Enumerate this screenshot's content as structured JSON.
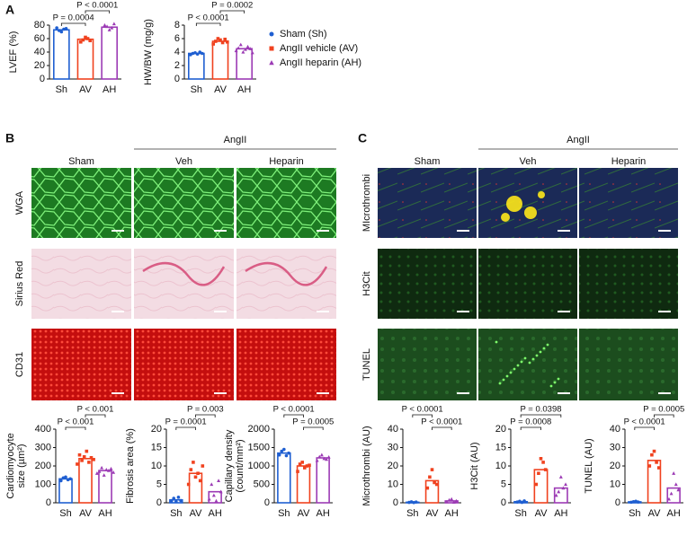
{
  "chart_data": [
    {
      "type": "bar",
      "ylabel": [
        "LVEF (%)"
      ],
      "categories": [
        "Sh",
        "AV",
        "AH"
      ],
      "values": [
        73,
        59,
        77
      ],
      "colors": [
        "#1f5fd1",
        "#f0421f",
        "#9c3bb5"
      ],
      "markers": [
        "circle",
        "square",
        "triangle"
      ],
      "points": [
        [
          76,
          72,
          70,
          74,
          75
        ],
        [
          55,
          58,
          62,
          60,
          57
        ],
        [
          80,
          78,
          73,
          76,
          82
        ]
      ],
      "ylim": [
        0,
        80
      ],
      "yticks": [
        0,
        20,
        40,
        60,
        80
      ],
      "annotations": [
        "P = 0.0004",
        "P < 0.0001"
      ]
    },
    {
      "type": "bar",
      "ylabel": [
        "HW/BW (mg/g)"
      ],
      "categories": [
        "Sh",
        "AV",
        "AH"
      ],
      "values": [
        3.8,
        5.6,
        4.5
      ],
      "colors": [
        "#1f5fd1",
        "#f0421f",
        "#9c3bb5"
      ],
      "markers": [
        "circle",
        "square",
        "triangle"
      ],
      "points": [
        [
          3.6,
          3.8,
          3.9,
          3.7,
          4.0,
          3.8
        ],
        [
          5.2,
          5.6,
          6.0,
          5.8,
          5.4,
          5.9,
          5.5
        ],
        [
          4.2,
          4.6,
          5.1,
          4.0,
          4.4,
          4.8,
          4.5,
          3.9
        ]
      ],
      "ylim": [
        0,
        8
      ],
      "yticks": [
        0,
        2,
        4,
        6,
        8
      ],
      "annotations": [
        "P < 0.0001",
        "P = 0.0002"
      ]
    },
    {
      "type": "bar",
      "ylabel": [
        "Cardiomyocyte",
        "size (µm²)"
      ],
      "categories": [
        "Sh",
        "AV",
        "AH"
      ],
      "values": [
        130,
        240,
        175
      ],
      "colors": [
        "#1f5fd1",
        "#f0421f",
        "#9c3bb5"
      ],
      "markers": [
        "circle",
        "square",
        "triangle"
      ],
      "points": [
        [
          120,
          135,
          140,
          125,
          130
        ],
        [
          210,
          260,
          230,
          250,
          280,
          220,
          245,
          235
        ],
        [
          160,
          170,
          190,
          150,
          180,
          175,
          185,
          165
        ]
      ],
      "ylim": [
        0,
        400
      ],
      "yticks": [
        0,
        100,
        200,
        300,
        400
      ],
      "annotations": [
        "P < 0.001",
        "P < 0.001"
      ]
    },
    {
      "type": "bar",
      "ylabel": [
        "Fibrosis area (%)"
      ],
      "categories": [
        "Sh",
        "AV",
        "AH"
      ],
      "values": [
        0.8,
        8,
        3
      ],
      "colors": [
        "#1f5fd1",
        "#f0421f",
        "#9c3bb5"
      ],
      "markers": [
        "circle",
        "square",
        "triangle"
      ],
      "points": [
        [
          0.5,
          1.2,
          0.3,
          1.5,
          0.6
        ],
        [
          5,
          9,
          11,
          7,
          8,
          6,
          10
        ],
        [
          1,
          5,
          2,
          0.5,
          6,
          3
        ]
      ],
      "ylim": [
        0,
        20
      ],
      "yticks": [
        0,
        5,
        10,
        15,
        20
      ],
      "annotations": [
        "P = 0.0001",
        "P = 0.003"
      ]
    },
    {
      "type": "bar",
      "ylabel": [
        "Capillary density",
        "(count/mm²)"
      ],
      "categories": [
        "Sh",
        "AV",
        "AH"
      ],
      "values": [
        1350,
        1000,
        1220
      ],
      "colors": [
        "#1f5fd1",
        "#f0421f",
        "#9c3bb5"
      ],
      "markers": [
        "circle",
        "square",
        "triangle"
      ],
      "points": [
        [
          1300,
          1400,
          1450,
          1280,
          1350
        ],
        [
          850,
          1050,
          1100,
          950,
          1000,
          1020
        ],
        [
          1150,
          1250,
          1300,
          1200,
          1180,
          1240
        ]
      ],
      "ylim": [
        0,
        2000
      ],
      "yticks": [
        0,
        500,
        1000,
        1500,
        2000
      ],
      "annotations": [
        "P < 0.0001",
        "P = 0.0005"
      ]
    },
    {
      "type": "bar",
      "ylabel": [
        "Microthrombi (AU)"
      ],
      "categories": [
        "Sh",
        "AV",
        "AH"
      ],
      "values": [
        0.3,
        12,
        1
      ],
      "colors": [
        "#1f5fd1",
        "#f0421f",
        "#9c3bb5"
      ],
      "markers": [
        "circle",
        "square",
        "triangle"
      ],
      "points": [
        [
          0.2,
          0.5,
          0.1,
          0.4
        ],
        [
          8,
          14,
          18,
          11,
          10
        ],
        [
          0.5,
          1.5,
          2,
          0.3,
          1
        ]
      ],
      "ylim": [
        0,
        40
      ],
      "yticks": [
        0,
        10,
        20,
        30,
        40
      ],
      "annotations": [
        "P < 0.0001",
        "P < 0.0001"
      ]
    },
    {
      "type": "bar",
      "ylabel": [
        "H3Cit (AU)"
      ],
      "categories": [
        "Sh",
        "AV",
        "AH"
      ],
      "values": [
        0.3,
        9,
        4
      ],
      "colors": [
        "#1f5fd1",
        "#f0421f",
        "#9c3bb5"
      ],
      "markers": [
        "circle",
        "square",
        "triangle"
      ],
      "points": [
        [
          0.2,
          0.4,
          0.1,
          0.5
        ],
        [
          5,
          8,
          12,
          11,
          9
        ],
        [
          2,
          3,
          7,
          4,
          5
        ]
      ],
      "ylim": [
        0,
        20
      ],
      "yticks": [
        0,
        5,
        10,
        15,
        20
      ],
      "annotations": [
        "P = 0.0008",
        "P = 0.0398"
      ]
    },
    {
      "type": "bar",
      "ylabel": [
        "TUNEL (AU)"
      ],
      "categories": [
        "Sh",
        "AV",
        "AH"
      ],
      "values": [
        0.5,
        23,
        8
      ],
      "colors": [
        "#1f5fd1",
        "#f0421f",
        "#9c3bb5"
      ],
      "markers": [
        "circle",
        "square",
        "triangle"
      ],
      "points": [
        [
          0.3,
          0.6,
          0.8,
          0.4
        ],
        [
          20,
          26,
          28,
          22,
          19
        ],
        [
          2,
          5,
          16,
          10,
          7
        ]
      ],
      "ylim": [
        0,
        40
      ],
      "yticks": [
        0,
        10,
        20,
        30,
        40
      ],
      "annotations": [
        "P < 0.0001",
        "P = 0.0005"
      ]
    }
  ],
  "figure": {
    "panels": [
      "A",
      "B",
      "C"
    ],
    "legend": [
      {
        "name": "Sham (Sh)",
        "color": "#1f5fd1",
        "marker": "circle"
      },
      {
        "name": "AngII vehicle (AV)",
        "color": "#f0421f",
        "marker": "square"
      },
      {
        "name": "AngII heparin (AH)",
        "color": "#9c3bb5",
        "marker": "triangle"
      }
    ],
    "B": {
      "columns": [
        "Sham",
        "Veh",
        "Heparin"
      ],
      "group": "AngII",
      "rows": [
        "WGA",
        "Sirius Red",
        "CD31"
      ]
    },
    "C": {
      "columns": [
        "Sham",
        "Veh",
        "Heparin"
      ],
      "group": "AngII",
      "rows": [
        "MIcrothrombi",
        "H3Cit",
        "TUNEL"
      ]
    }
  }
}
